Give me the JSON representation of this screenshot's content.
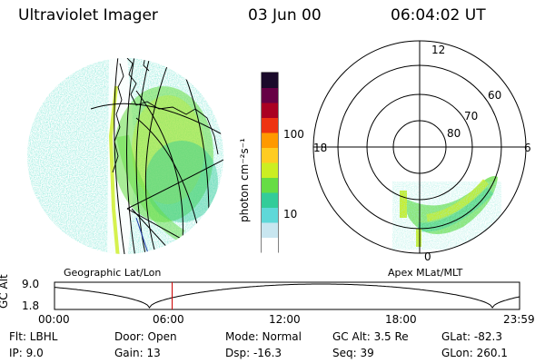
{
  "header": {
    "instrument": "Ultraviolet Imager",
    "date": "03 Jun 00",
    "time": "06:04:02 UT"
  },
  "colorbar": {
    "unit_label": "photon cm⁻²s⁻¹",
    "ticks": [
      "100",
      "10"
    ],
    "scale": "log",
    "colors": [
      "#ffffff",
      "#c8e6f0",
      "#5fd8d8",
      "#33cc99",
      "#66dd44",
      "#ccee22",
      "#ffcc22",
      "#ff9900",
      "#ee3311",
      "#aa0022",
      "#660044",
      "#1a0a2a"
    ]
  },
  "left_panel": {
    "caption": "Geographic Lat/Lon"
  },
  "right_panel": {
    "caption": "Apex MLat/MLT",
    "lat_labels": [
      "60",
      "70",
      "80"
    ],
    "mlt_labels": [
      "12",
      "18",
      "6",
      "0"
    ]
  },
  "altitude_plot": {
    "ylabel": "GC Alt",
    "ytick_top": "9.0",
    "ytick_bottom": "1.8",
    "xticks": [
      "00:00",
      "06:00",
      "12:00",
      "18:00",
      "23:59"
    ],
    "current_time_marker_hours": 6.07
  },
  "footer": {
    "flt": "Flt: LBHL",
    "ip": "IP:  9.0",
    "door": "Door: Open",
    "gain": "Gain: 13",
    "mode": "Mode: Normal",
    "dsp": "Dsp:  -16.3",
    "gc_alt": "GC Alt: 3.5 Re",
    "seq": "Seq: 39",
    "glat": "GLat: -82.3",
    "glon": "GLon: 260.1"
  }
}
